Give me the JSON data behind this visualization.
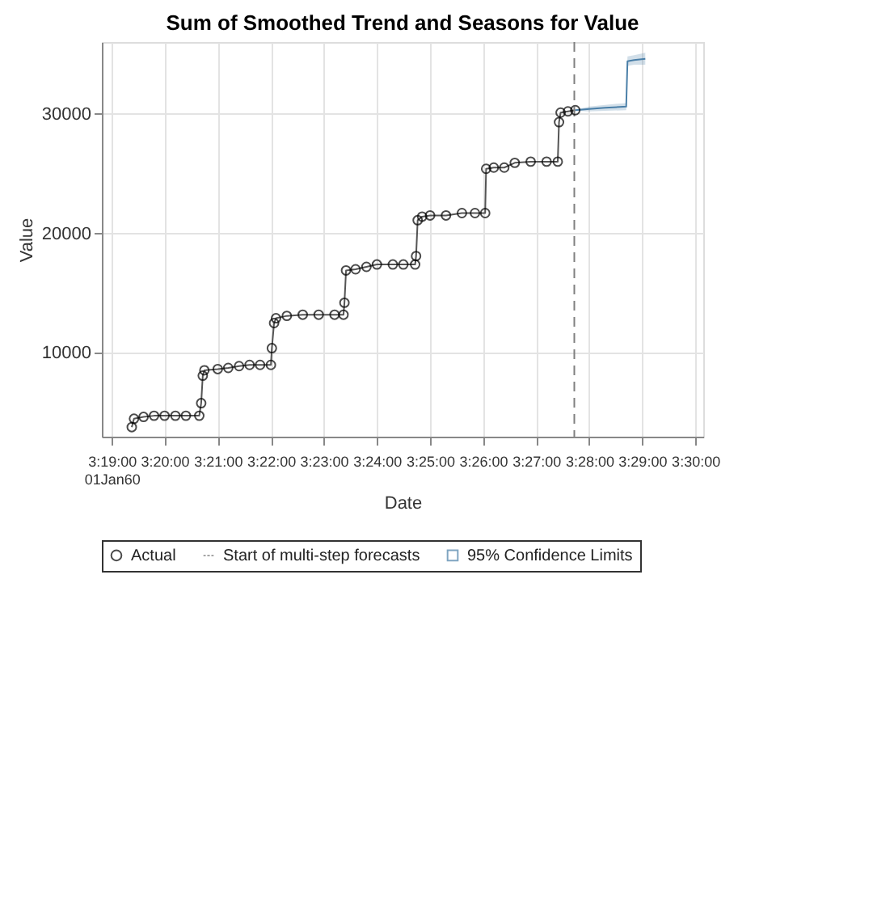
{
  "chart_data": {
    "type": "line",
    "title": "Sum of Smoothed Trend and Seasons for Value",
    "xlabel": "Date",
    "ylabel": "Value",
    "xlim": [
      3.3136,
      3.5025
    ],
    "xticks": [
      {
        "value": 3.3167,
        "label": "3:19:00\n01Jan60"
      },
      {
        "value": 3.3333,
        "label": "3:20:00"
      },
      {
        "value": 3.35,
        "label": "3:21:00"
      },
      {
        "value": 3.3667,
        "label": "3:22:00"
      },
      {
        "value": 3.3833,
        "label": "3:23:00"
      },
      {
        "value": 3.4,
        "label": "3:24:00"
      },
      {
        "value": 3.4167,
        "label": "3:25:00"
      },
      {
        "value": 3.4333,
        "label": "3:26:00"
      },
      {
        "value": 3.45,
        "label": "3:27:00"
      },
      {
        "value": 3.4667,
        "label": "3:28:00"
      },
      {
        "value": 3.4833,
        "label": "3:29:00"
      },
      {
        "value": 3.5,
        "label": "3:30:00"
      }
    ],
    "ylim": [
      3000,
      36000
    ],
    "yticks": [
      10000,
      20000,
      30000
    ],
    "grid": true,
    "legend": "bottom",
    "series": [
      {
        "name": "Actual",
        "marker": "circle",
        "line_style": "solid",
        "color": "#000000",
        "x": [
          3.323,
          3.3237,
          3.3267,
          3.33,
          3.3333,
          3.3367,
          3.34,
          3.3442,
          3.3448,
          3.3453,
          3.3458,
          3.35,
          3.3533,
          3.3567,
          3.36,
          3.3633,
          3.3667,
          3.367,
          3.3677,
          3.3683,
          3.3717,
          3.3767,
          3.3817,
          3.3867,
          3.3895,
          3.3898,
          3.3903,
          3.3933,
          3.3967,
          3.4,
          3.405,
          3.4083,
          3.412,
          3.4123,
          3.4128,
          3.4142,
          3.4167,
          3.4217,
          3.4267,
          3.4308,
          3.434,
          3.4343,
          3.4367,
          3.44,
          3.4433,
          3.4483,
          3.4533,
          3.4568,
          3.4572,
          3.4577,
          3.46,
          3.4623
        ],
        "values": [
          3800,
          4500,
          4650,
          4750,
          4750,
          4750,
          4750,
          4750,
          5800,
          8100,
          8550,
          8650,
          8750,
          8900,
          9000,
          9000,
          9000,
          10400,
          12500,
          12900,
          13100,
          13200,
          13200,
          13200,
          13200,
          14200,
          16900,
          17000,
          17200,
          17400,
          17400,
          17400,
          17400,
          18100,
          21100,
          21400,
          21500,
          21500,
          21700,
          21700,
          21700,
          25400,
          25500,
          25500,
          25900,
          26000,
          26000,
          26000,
          29300,
          30100,
          30200,
          30300
        ]
      },
      {
        "name": "95% Confidence Limits",
        "marker": "none",
        "line_style": "solid",
        "color": "#4a7fa8",
        "x": [
          3.4623,
          3.4667,
          3.4717,
          3.4783,
          3.4787,
          3.4808,
          3.4843
        ],
        "values": [
          30300,
          30400,
          30500,
          30600,
          34400,
          34500,
          34600
        ],
        "lower": [
          30250,
          30200,
          30250,
          30300,
          34000,
          34100,
          34100
        ],
        "upper": [
          30350,
          30600,
          30750,
          30900,
          34800,
          34900,
          35100
        ]
      }
    ],
    "ref_lines": [
      {
        "axis": "x",
        "value": 3.462,
        "label": "Start of multi-step forecasts",
        "line_style": "dashed",
        "color": "#808080"
      }
    ]
  }
}
